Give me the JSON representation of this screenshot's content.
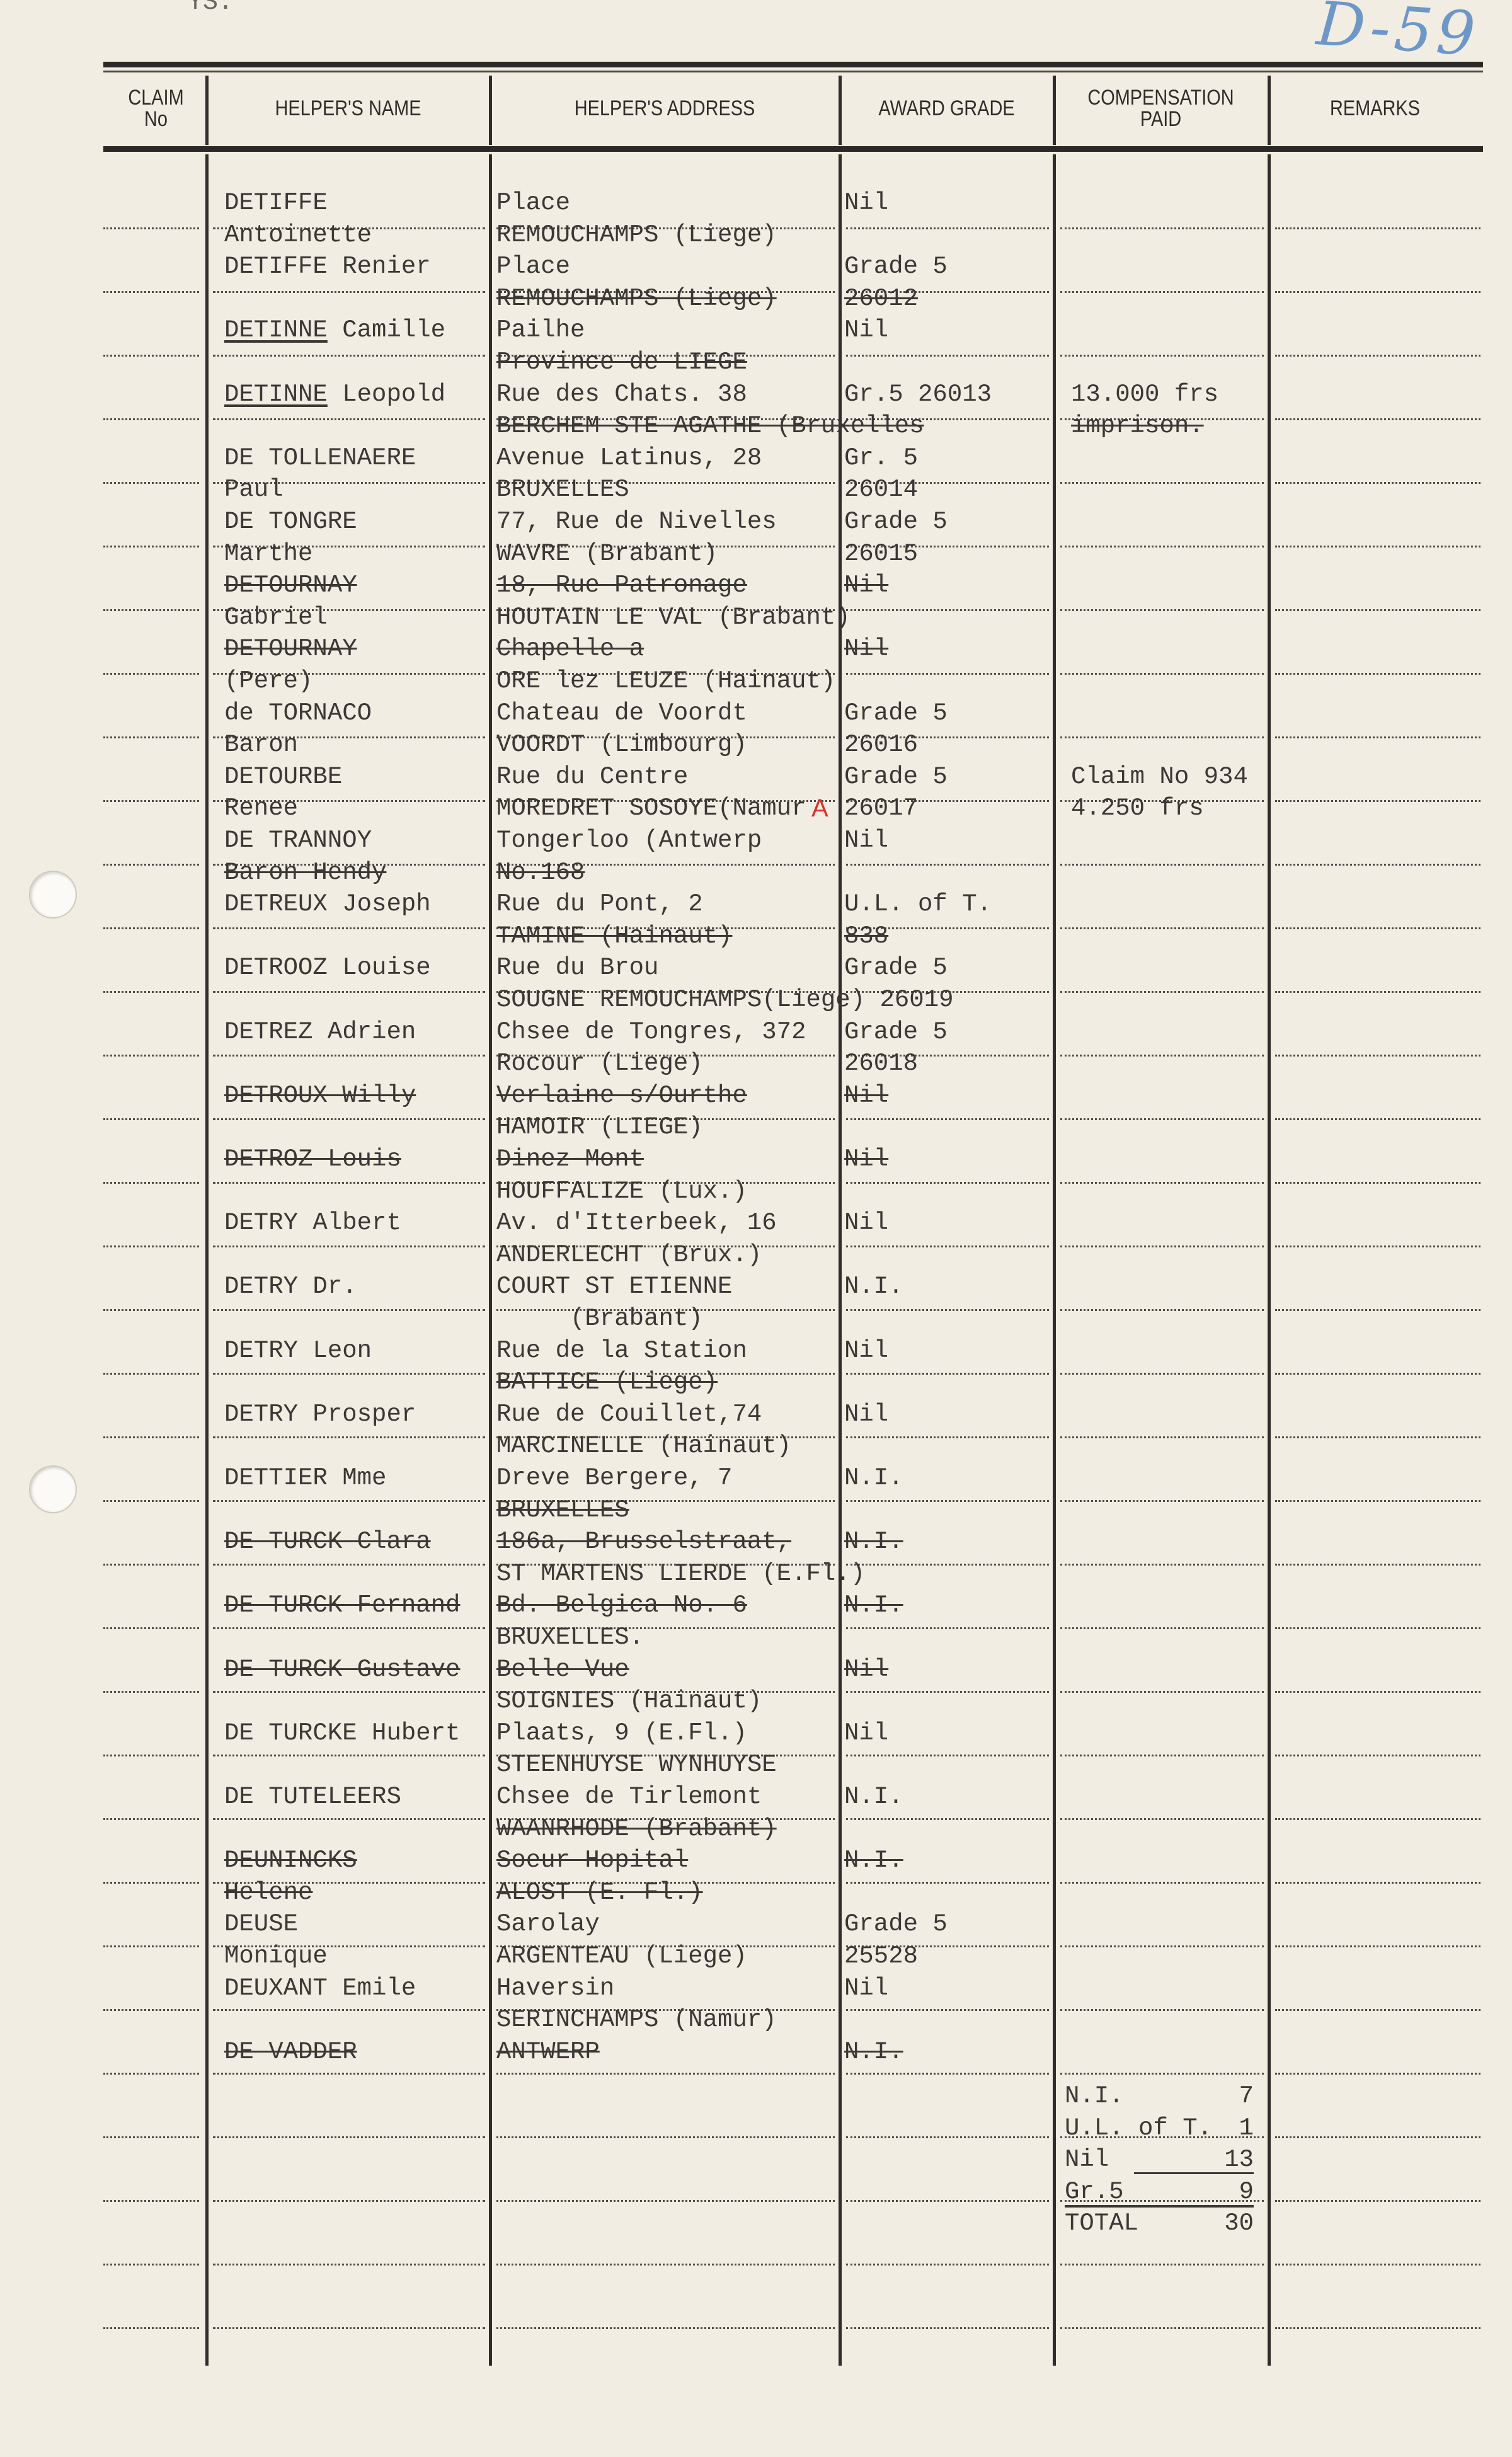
{
  "page": {
    "corner_note": "YS.",
    "file_reference": "D-59",
    "ink_color": "#3a3835",
    "reference_color": "#6d97c7",
    "correction_color": "#d6322a"
  },
  "table": {
    "headers": {
      "claim_no": "CLAIM\nNo",
      "name": "HELPER'S NAME",
      "address": "HELPER'S ADDRESS",
      "grade": "AWARD GRADE",
      "compensation": "COMPENSATION\nPAID",
      "remarks": "REMARKS"
    },
    "lines": [
      {
        "name": "DETIFFE",
        "address": "Place",
        "grade": "Nil"
      },
      {
        "name": "Antoinette",
        "address": "REMOUCHAMPS (Liege)"
      },
      {
        "name": "DETIFFE Renier",
        "address": "Place",
        "grade": "Grade 5"
      },
      {
        "address": "REMOUCHAMPS (Liege)",
        "grade": "26012"
      },
      {
        "name": "DETINNE Camille",
        "name_underlined": "DETINNE",
        "address": "Pailhe",
        "grade": "Nil"
      },
      {
        "address": "Province de LIEGE"
      },
      {
        "name": "DETINNE Leopold",
        "name_underlined": "DETINNE",
        "address": "Rue des Chats. 38",
        "grade": "Gr.5 26013",
        "compensation": "13.000 frs"
      },
      {
        "address": "BERCHEM STE AGATHE (Bruxelles",
        "compensation": "imprison."
      },
      {
        "name": "DE TOLLENAERE",
        "address": "Avenue Latinus, 28",
        "grade": "Gr. 5"
      },
      {
        "name": "Paul",
        "address": "BRUXELLES",
        "grade": "26014"
      },
      {
        "name": "DE TONGRE",
        "address": "77, Rue de Nivelles",
        "grade": "Grade 5"
      },
      {
        "name": "Marthe",
        "address": "WAVRE (Brabant)",
        "grade": "26015"
      },
      {
        "name": "DETOURNAY",
        "address": "18, Rue Patronage",
        "grade": "Nil"
      },
      {
        "name": "Gabriel",
        "address": "HOUTAIN LE VAL (Brabant)"
      },
      {
        "name": "DETOURNAY",
        "address": "Chapelle a",
        "grade": "Nil"
      },
      {
        "name": "(Pere)",
        "address": "ORE lez LEUZE (Hainaut)"
      },
      {
        "name": "de TORNACO",
        "address": "Chateau de Voordt",
        "grade": "Grade 5"
      },
      {
        "name": "Baron",
        "address": "VOORDT (Limbourg)",
        "grade": "26016"
      },
      {
        "name": "DETOURBE",
        "address": "Rue du Centre",
        "grade": "Grade 5",
        "compensation": "Claim No 934"
      },
      {
        "name": "Renee",
        "address": "MOREDRET SOSOYE(Namur",
        "grade": "26017",
        "compensation": "4.250 frs"
      },
      {
        "name": "DE TRANNOY",
        "address": "Tongerloo (Antwerp",
        "grade": "Nil"
      },
      {
        "name": "Baron Hendy",
        "address": "No.168"
      },
      {
        "name": "DETREUX Joseph",
        "address": "Rue du Pont, 2",
        "grade": "U.L. of T."
      },
      {
        "address": "TAMINE (Hainaut)",
        "grade": "838"
      },
      {
        "name": "DETROOZ Louise",
        "address": "Rue du Brou",
        "grade": "Grade 5"
      },
      {
        "address": "SOUGNE REMOUCHAMPS(Liege) 26019"
      },
      {
        "name": "DETREZ Adrien",
        "address": "Chsee de Tongres, 372",
        "grade": "Grade 5"
      },
      {
        "address": "Rocour (Liege)",
        "grade": "26018"
      },
      {
        "name": "DETROUX Willy",
        "address": "Verlaine s/Ourthe",
        "grade": "Nil"
      },
      {
        "address": "HAMOIR (LIEGE)"
      },
      {
        "name": "DETROZ Louis",
        "address": "Dinez-Mont",
        "grade": "Nil"
      },
      {
        "address": "HOUFFALIZE (Lux.)"
      },
      {
        "name": "DETRY Albert",
        "address": "Av. d'Itterbeek, 16",
        "grade": "Nil"
      },
      {
        "address": "ANDERLECHT (Brux.)"
      },
      {
        "name": "DETRY Dr.",
        "address": "COURT ST ETIENNE",
        "grade": "N.I."
      },
      {
        "address": "     (Brabant)"
      },
      {
        "name": "DETRY Leon",
        "address": "Rue de la Station",
        "grade": "Nil"
      },
      {
        "address": "BATTICE (Liege)"
      },
      {
        "name": "DETRY Prosper",
        "address": "Rue de Couillet,74",
        "grade": "Nil"
      },
      {
        "address": "MARCINELLE (Hainaut)"
      },
      {
        "name": "DETTIER Mme",
        "address": "Dreve Bergere, 7",
        "grade": "N.I."
      },
      {
        "address": "BRUXELLES"
      },
      {
        "name": "DE TURCK Clara",
        "address": "186a, Brusselstraat,",
        "grade": "N.I."
      },
      {
        "address": "ST MARTENS LIERDE (E.Fl.)"
      },
      {
        "name": "DE TURCK Fernand",
        "address": "Bd. Belgica No. 6",
        "grade": "N.I."
      },
      {
        "address": "BRUXELLES."
      },
      {
        "name": "DE TURCK Gustave",
        "address": "Belle Vue",
        "grade": "Nil"
      },
      {
        "address": "SOIGNIES (Hainaut)"
      },
      {
        "name": "DE TURCKE Hubert",
        "address": "Plaats, 9 (E.Fl.)",
        "grade": "Nil"
      },
      {
        "address": "STEENHUYSE WYNHUYSE"
      },
      {
        "name": "DE TUTELEERS",
        "address": "Chsee de Tirlemont",
        "grade": "N.I."
      },
      {
        "address": "WAANRHODE (Brabant)"
      },
      {
        "name": "DEUNINCKS",
        "address": "Soeur Hopital",
        "grade": "N.I."
      },
      {
        "name": "Helene",
        "address": "ALOST (E. Fl.)"
      },
      {
        "name": "DEUSE",
        "address": "Sarolay",
        "grade": "Grade 5"
      },
      {
        "name": "Monique",
        "address": "ARGENTEAU (Liege)",
        "grade": "25528"
      },
      {
        "name": "DEUXANT Emile",
        "address": "Haversin",
        "grade": "Nil"
      },
      {
        "address": "SERINCHAMPS (Namur)"
      },
      {
        "name": "DE VADDER",
        "address": "ANTWERP",
        "grade": "N.I."
      }
    ],
    "address_correction_mark": "A",
    "totals": [
      {
        "label": "N.I.",
        "value": "7"
      },
      {
        "label": "U.L. of T.",
        "value": "1"
      },
      {
        "label": "Nil",
        "value": "13"
      },
      {
        "label": "Gr.5",
        "value": "9"
      },
      {
        "label": "TOTAL",
        "value": "30"
      }
    ]
  }
}
